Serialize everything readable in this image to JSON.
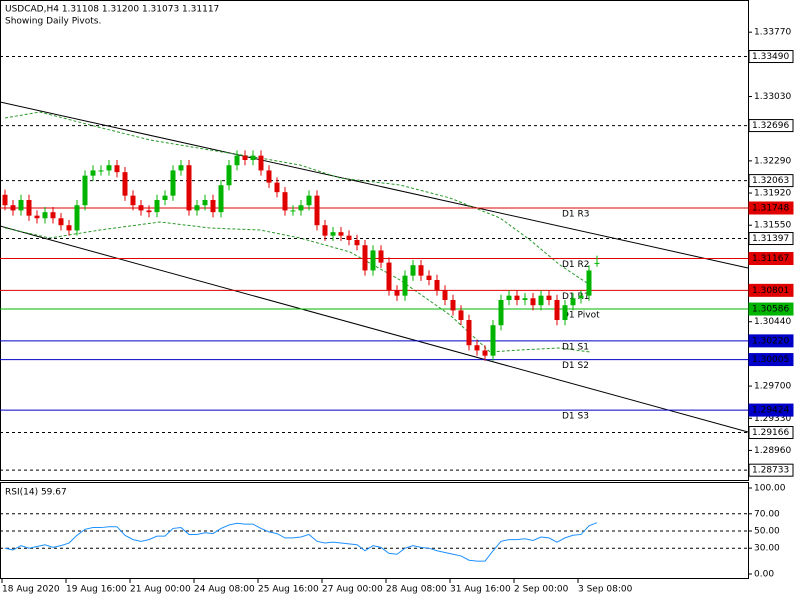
{
  "chart_data": [
    {
      "type": "candlestick",
      "title": "USDCAD,H4  1.31108 1.31200 1.31073 1.31117",
      "subtitle": "Showing Daily Pivots.",
      "categories": [
        "18 Aug 2020",
        null,
        null,
        null,
        null,
        null,
        null,
        null,
        "19 Aug 16:00",
        null,
        null,
        null,
        null,
        null,
        null,
        null,
        "21 Aug 00:00",
        null,
        null,
        null,
        null,
        null,
        null,
        null,
        "24 Aug 08:00",
        null,
        null,
        null,
        null,
        null,
        null,
        null,
        "25 Aug 16:00",
        null,
        null,
        null,
        null,
        null,
        null,
        null,
        "27 Aug 00:00",
        null,
        null,
        null,
        null,
        null,
        null,
        null,
        "28 Aug 08:00",
        null,
        null,
        null,
        null,
        null,
        null,
        null,
        "31 Aug 16:00",
        null,
        null,
        null,
        null,
        null,
        null,
        null,
        "2 Sep 00:00",
        null,
        null,
        null,
        null,
        null,
        null,
        null,
        "3 Sep 08:00",
        null,
        null
      ],
      "open": [
        1.319,
        1.3178,
        1.3172,
        1.3184,
        1.3166,
        1.3163,
        1.317,
        1.3163,
        1.3155,
        1.3149,
        1.3178,
        1.3212,
        1.3218,
        1.3218,
        1.3224,
        1.3216,
        1.3189,
        1.3178,
        1.3172,
        1.317,
        1.3184,
        1.3189,
        1.3218,
        1.3224,
        1.3172,
        1.3178,
        1.3184,
        1.317,
        1.3201,
        1.3224,
        1.3235,
        1.323,
        1.3235,
        1.3218,
        1.3204,
        1.3193,
        1.3172,
        1.3172,
        1.3178,
        1.3189,
        1.3155,
        1.3143,
        1.3147,
        1.3143,
        1.3138,
        1.3132,
        1.3103,
        1.3126,
        1.3112,
        1.308,
        1.3074,
        1.3097,
        1.3109,
        1.3097,
        1.3092,
        1.308,
        1.3069,
        1.3057,
        1.3046,
        1.3017,
        1.3011,
        1.3005,
        1.304,
        1.3069,
        1.3074,
        1.3069,
        1.3071,
        1.3063,
        1.3074,
        1.3069,
        1.3046,
        1.3063,
        1.3071,
        1.3074,
        1.31108
      ],
      "high": [
        1.3196,
        1.3184,
        1.319,
        1.319,
        1.3172,
        1.3176,
        1.3176,
        1.3169,
        1.3161,
        1.3184,
        1.3218,
        1.3224,
        1.3224,
        1.323,
        1.323,
        1.3222,
        1.3195,
        1.3184,
        1.3178,
        1.319,
        1.3195,
        1.3224,
        1.323,
        1.323,
        1.3184,
        1.319,
        1.319,
        1.3207,
        1.323,
        1.3241,
        1.3241,
        1.3241,
        1.3241,
        1.3224,
        1.321,
        1.3199,
        1.3178,
        1.3184,
        1.3195,
        1.3195,
        1.3161,
        1.3153,
        1.3153,
        1.3149,
        1.3144,
        1.3138,
        1.3132,
        1.3132,
        1.3118,
        1.3086,
        1.3103,
        1.3115,
        1.3115,
        1.3103,
        1.3098,
        1.3086,
        1.3075,
        1.3063,
        1.3052,
        1.3023,
        1.3017,
        1.3046,
        1.3075,
        1.308,
        1.308,
        1.3077,
        1.3077,
        1.308,
        1.308,
        1.3075,
        1.3069,
        1.3077,
        1.308,
        1.3109,
        1.312
      ],
      "low": [
        1.3172,
        1.3166,
        1.3166,
        1.316,
        1.3157,
        1.3157,
        1.3157,
        1.3149,
        1.3143,
        1.3143,
        1.3172,
        1.3206,
        1.3212,
        1.3212,
        1.321,
        1.3183,
        1.3172,
        1.3166,
        1.3164,
        1.3164,
        1.3178,
        1.3183,
        1.3212,
        1.3166,
        1.3166,
        1.3172,
        1.3164,
        1.3164,
        1.3195,
        1.3218,
        1.3224,
        1.3224,
        1.3212,
        1.3198,
        1.3187,
        1.3166,
        1.3166,
        1.3166,
        1.3172,
        1.3149,
        1.3137,
        1.3137,
        1.3137,
        1.3132,
        1.3126,
        1.3097,
        1.3097,
        1.3106,
        1.3074,
        1.3068,
        1.3068,
        1.3091,
        1.3091,
        1.3086,
        1.3074,
        1.3063,
        1.3051,
        1.304,
        1.3011,
        1.3005,
        1.2999,
        1.2999,
        1.3034,
        1.3063,
        1.3063,
        1.3063,
        1.3057,
        1.3057,
        1.3063,
        1.304,
        1.304,
        1.3057,
        1.3065,
        1.3068,
        1.31073
      ],
      "close": [
        1.3178,
        1.3172,
        1.3184,
        1.3166,
        1.3163,
        1.317,
        1.3163,
        1.3155,
        1.3149,
        1.3178,
        1.3212,
        1.3218,
        1.3218,
        1.3224,
        1.3216,
        1.3189,
        1.3178,
        1.3172,
        1.317,
        1.3184,
        1.3189,
        1.3218,
        1.3224,
        1.3172,
        1.3178,
        1.3184,
        1.317,
        1.3201,
        1.3224,
        1.3235,
        1.323,
        1.3235,
        1.3218,
        1.3204,
        1.3193,
        1.3172,
        1.3172,
        1.3178,
        1.3189,
        1.3155,
        1.3143,
        1.3147,
        1.3143,
        1.3138,
        1.3132,
        1.3103,
        1.3126,
        1.3112,
        1.308,
        1.3074,
        1.3097,
        1.3109,
        1.3097,
        1.3092,
        1.308,
        1.3069,
        1.3057,
        1.3046,
        1.3017,
        1.3011,
        1.3005,
        1.304,
        1.3069,
        1.3074,
        1.3069,
        1.3071,
        1.3063,
        1.3074,
        1.3069,
        1.3046,
        1.3063,
        1.3071,
        1.3074,
        1.3103,
        1.31117
      ],
      "up_color": "#00b400",
      "down_color": "#e00000",
      "ylim": [
        1.2862,
        1.3414
      ],
      "yticks": [
        {
          "value": 1.3377,
          "label": "1.33770"
        },
        {
          "value": 1.3303,
          "label": "1.33030"
        },
        {
          "value": 1.3229,
          "label": "1.32290"
        },
        {
          "value": 1.3192,
          "label": "1.31920"
        },
        {
          "value": 1.3155,
          "label": "1.31550"
        },
        {
          "value": 1.3044,
          "label": "1.30440"
        },
        {
          "value": 1.297,
          "label": "1.29700"
        },
        {
          "value": 1.2933,
          "label": "1.29330"
        },
        {
          "value": 1.2896,
          "label": "1.28960"
        }
      ],
      "levels": [
        {
          "value": 1.3349,
          "label": "1.33490",
          "color": "#000000",
          "style": "dashed"
        },
        {
          "value": 1.32696,
          "label": "1.32696",
          "color": "#000000",
          "style": "dashed"
        },
        {
          "value": 1.32063,
          "label": "1.32063",
          "color": "#000000",
          "style": "dashed"
        },
        {
          "value": 1.31748,
          "label": "1.31748",
          "name": "D1 R3",
          "color": "#e00000",
          "style": "solid"
        },
        {
          "value": 1.31397,
          "label": "1.31397",
          "color": "#000000",
          "style": "dashed"
        },
        {
          "value": 1.31167,
          "label": "1.31167",
          "name": "D1 R2",
          "color": "#e00000",
          "style": "solid"
        },
        {
          "value": 1.30801,
          "label": "1.30801",
          "name": "D1 R1",
          "color": "#e00000",
          "style": "solid"
        },
        {
          "value": 1.30586,
          "label": "1.30586",
          "name": "D1 Pivot",
          "color": "#00b400",
          "style": "solid"
        },
        {
          "value": 1.3022,
          "label": "1.30220",
          "name": "D1 S1",
          "color": "#0000c8",
          "style": "solid"
        },
        {
          "value": 1.30005,
          "label": "1.30005",
          "name": "D1 S2",
          "color": "#0000c8",
          "style": "solid"
        },
        {
          "value": 1.29424,
          "label": "1.29424",
          "name": "D1 S3",
          "color": "#0000c8",
          "style": "solid"
        },
        {
          "value": 1.29166,
          "label": "1.29166",
          "color": "#000000",
          "style": "dashed"
        },
        {
          "value": 1.28733,
          "label": "1.28733",
          "color": "#000000",
          "style": "dashed"
        }
      ]
    },
    {
      "type": "line",
      "title": "RSI(14) 59.67",
      "series": [
        {
          "name": "RSI(14)",
          "color": "#1e90ff",
          "values": [
            30,
            28,
            33,
            30,
            32,
            34,
            31,
            33,
            36,
            45,
            52,
            54,
            54,
            55,
            55,
            45,
            40,
            38,
            40,
            44,
            44,
            53,
            54,
            46,
            46,
            48,
            47,
            53,
            57,
            59,
            58,
            58,
            53,
            49,
            47,
            42,
            42,
            43,
            46,
            38,
            36,
            37,
            36,
            35,
            34,
            27,
            33,
            31,
            24,
            23,
            30,
            33,
            31,
            30,
            27,
            25,
            23,
            21,
            16,
            15,
            15,
            27,
            38,
            40,
            40,
            41,
            39,
            43,
            42,
            37,
            42,
            45,
            46,
            56,
            59.67
          ]
        }
      ],
      "ylim": [
        0,
        100
      ],
      "yticks": [
        {
          "value": 100,
          "label": "100.00"
        },
        {
          "value": 70,
          "label": "70.00"
        },
        {
          "value": 50,
          "label": "50.00"
        },
        {
          "value": 30,
          "label": "30.00"
        },
        {
          "value": 0,
          "label": "0.00"
        }
      ]
    }
  ]
}
